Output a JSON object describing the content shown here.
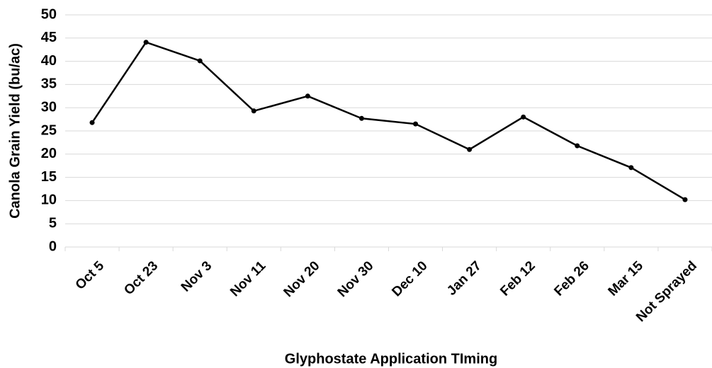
{
  "chart_data": {
    "type": "line",
    "xlabel": "Glyphostate Application TIming",
    "ylabel": "Canola Grain Yield (bu/ac)",
    "categories": [
      "Oct 5",
      "Oct 23",
      "Nov 3",
      "Nov 11",
      "Nov 20",
      "Nov 30",
      "Dec 10",
      "Jan 27",
      "Feb 12",
      "Feb 26",
      "Mar 15",
      "Not Sprayed"
    ],
    "values": [
      26.8,
      44.1,
      40.1,
      29.3,
      32.5,
      27.7,
      26.5,
      21.0,
      28.0,
      21.8,
      17.1,
      10.2
    ],
    "color": "#000000",
    "ylim": [
      0,
      50
    ],
    "yticks": [
      0,
      5,
      10,
      15,
      20,
      25,
      30,
      35,
      40,
      45,
      50
    ],
    "grid": true
  }
}
